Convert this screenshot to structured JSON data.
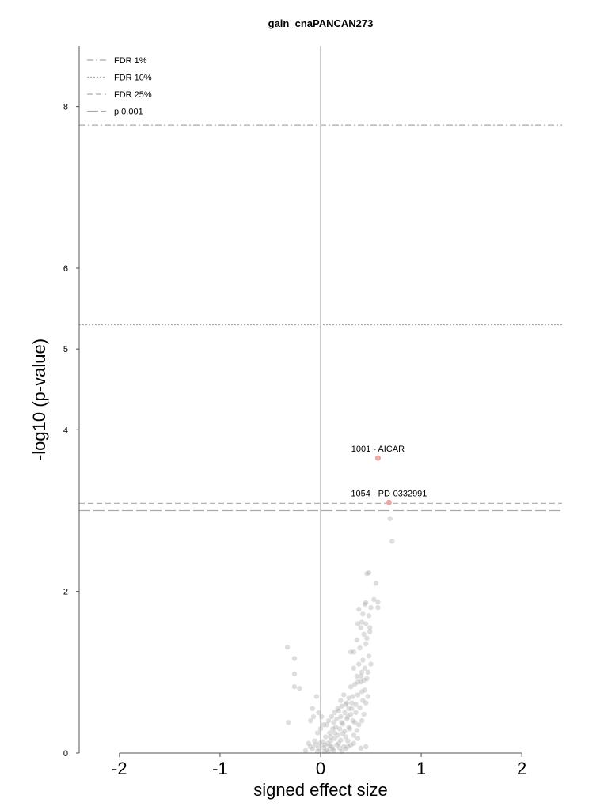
{
  "chart_data": {
    "type": "scatter",
    "title": "gain_cnaPANCAN273",
    "xlabel": "signed effect size",
    "ylabel": "-log10 (p-value)",
    "xlim": [
      -2.4,
      2.4
    ],
    "ylim": [
      0,
      8.75
    ],
    "x_ticks": [
      "-2",
      "-1",
      "0",
      "1",
      "2"
    ],
    "y_ticks": [
      "0",
      "2",
      "4",
      "5",
      "6",
      "8"
    ],
    "legend_position": "top-left",
    "legend": [
      {
        "label": "FDR 1%",
        "style": "dashdot"
      },
      {
        "label": "FDR 10%",
        "style": "dotted"
      },
      {
        "label": "FDR 25%",
        "style": "dashed"
      },
      {
        "label": "p 0.001",
        "style": "longdash"
      }
    ],
    "thresholds": [
      {
        "label": "FDR 1%",
        "y": 7.77,
        "style": "dashdot"
      },
      {
        "label": "FDR 10%",
        "y": 5.3,
        "style": "dotted"
      },
      {
        "label": "FDR 25%",
        "y": 3.09,
        "style": "dashed"
      },
      {
        "label": "p 0.001",
        "y": 3.0,
        "style": "longdash"
      }
    ],
    "highlighted": [
      {
        "label": "1001 - AICAR",
        "x": 0.57,
        "y": 3.65
      },
      {
        "label": "1054 - PD-0332991",
        "x": 0.68,
        "y": 3.1
      }
    ],
    "colors": {
      "highlight": "#f4a3a3",
      "points": "#a0a0a0",
      "threshold": "#aaaaaa",
      "axis": "#555555"
    },
    "points": [
      [
        0.48,
        2.23
      ],
      [
        0.46,
        2.22
      ],
      [
        0.55,
        2.1
      ],
      [
        0.69,
        2.9
      ],
      [
        0.71,
        2.62
      ],
      [
        0.45,
        1.86
      ],
      [
        0.44,
        1.84
      ],
      [
        0.5,
        1.8
      ],
      [
        0.53,
        1.9
      ],
      [
        0.57,
        1.87
      ],
      [
        0.57,
        1.8
      ],
      [
        0.38,
        1.78
      ],
      [
        0.42,
        1.72
      ],
      [
        0.48,
        1.7
      ],
      [
        0.37,
        1.6
      ],
      [
        0.4,
        1.55
      ],
      [
        0.45,
        1.6
      ],
      [
        0.49,
        1.5
      ],
      [
        0.43,
        1.47
      ],
      [
        -0.33,
        1.31
      ],
      [
        -0.26,
        1.17
      ],
      [
        -0.26,
        0.98
      ],
      [
        -0.26,
        0.82
      ],
      [
        -0.21,
        0.8
      ],
      [
        -0.32,
        0.38
      ],
      [
        -0.08,
        0.55
      ],
      [
        -0.07,
        0.45
      ],
      [
        -0.1,
        0.4
      ],
      [
        -0.04,
        0.7
      ],
      [
        0.3,
        1.25
      ],
      [
        0.33,
        1.25
      ],
      [
        0.36,
        1.4
      ],
      [
        0.39,
        1.3
      ],
      [
        0.45,
        1.35
      ],
      [
        0.48,
        1.2
      ],
      [
        0.42,
        1.15
      ],
      [
        0.38,
        1.1
      ],
      [
        0.44,
        1.05
      ],
      [
        0.41,
        1.0
      ],
      [
        0.33,
        1.05
      ],
      [
        0.36,
        0.95
      ],
      [
        0.46,
        0.92
      ],
      [
        0.4,
        0.88
      ],
      [
        0.34,
        0.85
      ],
      [
        0.3,
        0.82
      ],
      [
        0.44,
        0.78
      ],
      [
        0.41,
        0.76
      ],
      [
        0.37,
        0.72
      ],
      [
        0.32,
        0.7
      ],
      [
        0.28,
        0.68
      ],
      [
        0.23,
        0.72
      ],
      [
        0.26,
        0.62
      ],
      [
        0.35,
        0.6
      ],
      [
        0.21,
        0.58
      ],
      [
        0.31,
        0.55
      ],
      [
        0.24,
        0.5
      ],
      [
        0.18,
        0.52
      ],
      [
        0.3,
        0.48
      ],
      [
        0.2,
        0.45
      ],
      [
        0.26,
        0.42
      ],
      [
        0.16,
        0.42
      ],
      [
        0.13,
        0.38
      ],
      [
        0.22,
        0.36
      ],
      [
        0.28,
        0.32
      ],
      [
        0.19,
        0.3
      ],
      [
        0.12,
        0.3
      ],
      [
        0.24,
        0.27
      ],
      [
        0.09,
        0.25
      ],
      [
        0.17,
        0.22
      ],
      [
        0.05,
        0.2
      ],
      [
        0.14,
        0.18
      ],
      [
        0.2,
        0.16
      ],
      [
        0.1,
        0.15
      ],
      [
        0.02,
        0.14
      ],
      [
        0.07,
        0.12
      ],
      [
        0.16,
        0.1
      ],
      [
        0.11,
        0.08
      ],
      [
        0.03,
        0.07
      ],
      [
        0.19,
        0.06
      ],
      [
        -0.02,
        0.06
      ],
      [
        0.06,
        0.04
      ],
      [
        0.13,
        0.03
      ],
      [
        0.21,
        0.02
      ],
      [
        -0.03,
        0.02
      ],
      [
        0.08,
        0.02
      ],
      [
        0.25,
        0.05
      ],
      [
        0.3,
        0.1
      ],
      [
        0.27,
        0.15
      ],
      [
        0.33,
        0.22
      ],
      [
        0.36,
        0.28
      ],
      [
        0.38,
        0.35
      ],
      [
        0.41,
        0.4
      ],
      [
        0.43,
        0.48
      ],
      [
        0.39,
        0.56
      ],
      [
        0.45,
        0.62
      ],
      [
        0.47,
        0.7
      ],
      [
        0.42,
        0.65
      ],
      [
        0.34,
        0.38
      ],
      [
        0.29,
        0.3
      ],
      [
        0.22,
        0.24
      ],
      [
        0.15,
        0.32
      ],
      [
        0.1,
        0.2
      ],
      [
        0.04,
        0.1
      ],
      [
        -0.01,
        0.12
      ],
      [
        -0.05,
        0.1
      ],
      [
        -0.08,
        0.05
      ],
      [
        -0.06,
        0.15
      ],
      [
        -0.1,
        0.08
      ],
      [
        0.0,
        0.3
      ],
      [
        -0.03,
        0.25
      ],
      [
        0.03,
        0.35
      ],
      [
        -0.15,
        0.03
      ],
      [
        0.12,
        0.05
      ],
      [
        0.18,
        0.12
      ],
      [
        0.23,
        0.08
      ],
      [
        0.09,
        0.09
      ],
      [
        0.04,
        0.02
      ],
      [
        -0.12,
        0.12
      ],
      [
        0.35,
        0.5
      ],
      [
        0.31,
        0.62
      ],
      [
        0.28,
        0.55
      ],
      [
        0.25,
        0.6
      ],
      [
        0.2,
        0.65
      ],
      [
        0.17,
        0.55
      ],
      [
        0.14,
        0.5
      ],
      [
        0.11,
        0.45
      ],
      [
        0.08,
        0.4
      ],
      [
        0.06,
        0.35
      ],
      [
        0.01,
        0.45
      ],
      [
        -0.02,
        0.5
      ],
      [
        0.4,
        0.95
      ],
      [
        0.37,
        0.88
      ],
      [
        0.43,
        0.9
      ],
      [
        0.47,
        1.0
      ],
      [
        0.5,
        1.1
      ],
      [
        0.46,
        1.42
      ],
      [
        0.49,
        1.55
      ],
      [
        0.41,
        1.62
      ],
      [
        0.37,
        0.18
      ],
      [
        0.33,
        0.12
      ],
      [
        0.27,
        0.08
      ],
      [
        0.45,
        0.08
      ],
      [
        0.4,
        0.06
      ],
      [
        0.14,
        0.25
      ],
      [
        0.21,
        0.38
      ],
      [
        0.27,
        0.45
      ],
      [
        0.32,
        0.4
      ],
      [
        0.25,
        0.2
      ]
    ]
  }
}
